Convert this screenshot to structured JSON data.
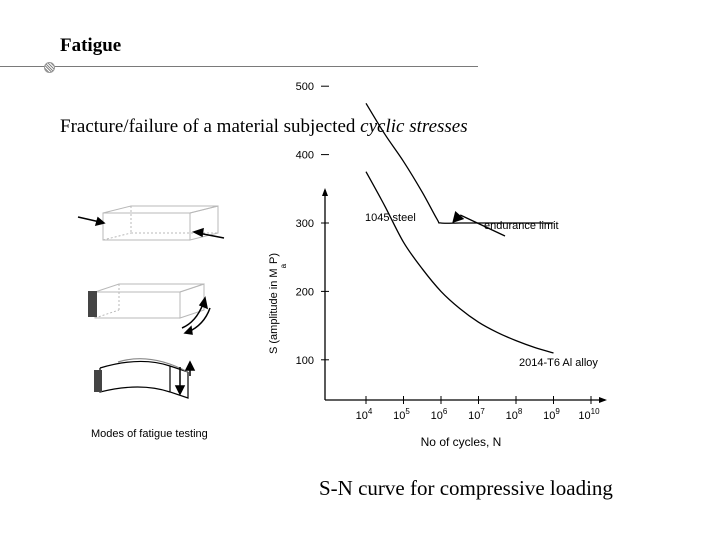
{
  "slide": {
    "title": "Fatigue",
    "subtitle_prefix": "Fracture/failure of a material subjected ",
    "subtitle_emphasis": "cyclic stresses",
    "caption": "S-N curve for compressive loading"
  },
  "testing_figure": {
    "caption": "Modes of fatigue testing"
  },
  "chart_data": {
    "type": "line",
    "title": "",
    "xlabel": "No of cycles, N",
    "ylabel_prefix": "S (amplitude in M",
    "ylabel_sub": "a",
    "ylabel_pa": "P",
    "ylabel_suffix": ")",
    "x_scale": "log",
    "xlim": [
      4,
      10
    ],
    "ylim": [
      50,
      560
    ],
    "x_tick_base": "10",
    "x_tick_exponents": [
      "4",
      "5",
      "6",
      "7",
      "8",
      "9",
      "10"
    ],
    "y_ticks": [
      100,
      200,
      300,
      400,
      500
    ],
    "series": [
      {
        "name": "1045 steel",
        "x": [
          4.0,
          4.5,
          5.0,
          5.5,
          5.9,
          6.0,
          6.5,
          7.0,
          7.5,
          8.0,
          8.5,
          9.0
        ],
        "y": [
          475,
          430,
          390,
          345,
          305,
          300,
          300,
          300,
          300,
          300,
          300,
          300
        ]
      },
      {
        "name": "2014-T6 Al alloy",
        "x": [
          4.0,
          4.5,
          5.0,
          5.5,
          6.0,
          6.5,
          7.0,
          7.5,
          8.0,
          8.5,
          9.0
        ],
        "y": [
          375,
          325,
          272,
          233,
          200,
          175,
          155,
          140,
          128,
          118,
          110
        ]
      }
    ],
    "annotations": [
      {
        "text": "endurance limit",
        "target_x": 6.3,
        "target_y": 300
      }
    ]
  }
}
